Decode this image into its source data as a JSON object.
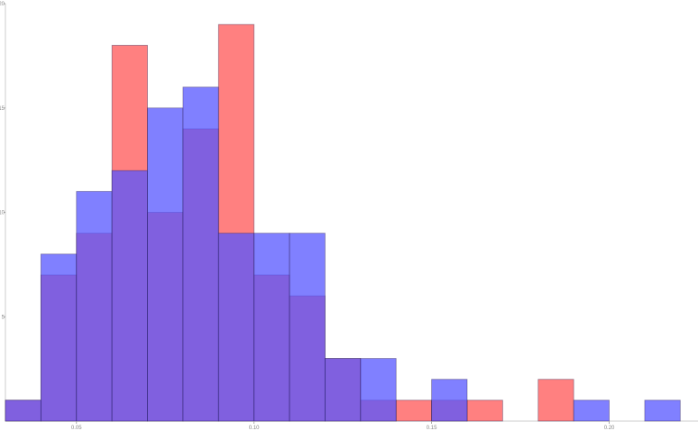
{
  "chart_data": {
    "type": "bar",
    "title": "",
    "xlabel": "",
    "ylabel": "",
    "xlim": [
      0.03,
      0.225
    ],
    "ylim": [
      0,
      20
    ],
    "grid": false,
    "bin_width": 0.01,
    "bin_starts": [
      0.03,
      0.04,
      0.05,
      0.06,
      0.07,
      0.08,
      0.09,
      0.1,
      0.11,
      0.12,
      0.13,
      0.14,
      0.15,
      0.16,
      0.17,
      0.18,
      0.19,
      0.2,
      0.21
    ],
    "x_ticks": [
      {
        "value": 0.05,
        "label": "0.05"
      },
      {
        "value": 0.1,
        "label": "0.10"
      },
      {
        "value": 0.15,
        "label": "0.15"
      },
      {
        "value": 0.2,
        "label": "0.20"
      }
    ],
    "y_ticks": [
      {
        "value": 5,
        "label": "5"
      },
      {
        "value": 10,
        "label": "10"
      },
      {
        "value": 15,
        "label": "15"
      },
      {
        "value": 20,
        "label": "20"
      }
    ],
    "series": [
      {
        "color": "#ff5555",
        "opacity": 0.75,
        "values": [
          1,
          7,
          9,
          18,
          10,
          14,
          19,
          7,
          6,
          3,
          1,
          1,
          1,
          1,
          0,
          2,
          0,
          0,
          0
        ]
      },
      {
        "color": "#5555ff",
        "opacity": 0.75,
        "values": [
          1,
          8,
          11,
          12,
          15,
          16,
          9,
          9,
          9,
          3,
          3,
          0,
          2,
          0,
          0,
          0,
          1,
          0,
          1
        ]
      }
    ],
    "overlap_color": "#7f3bbf",
    "bar_edge_color": "#2a1a4a"
  }
}
